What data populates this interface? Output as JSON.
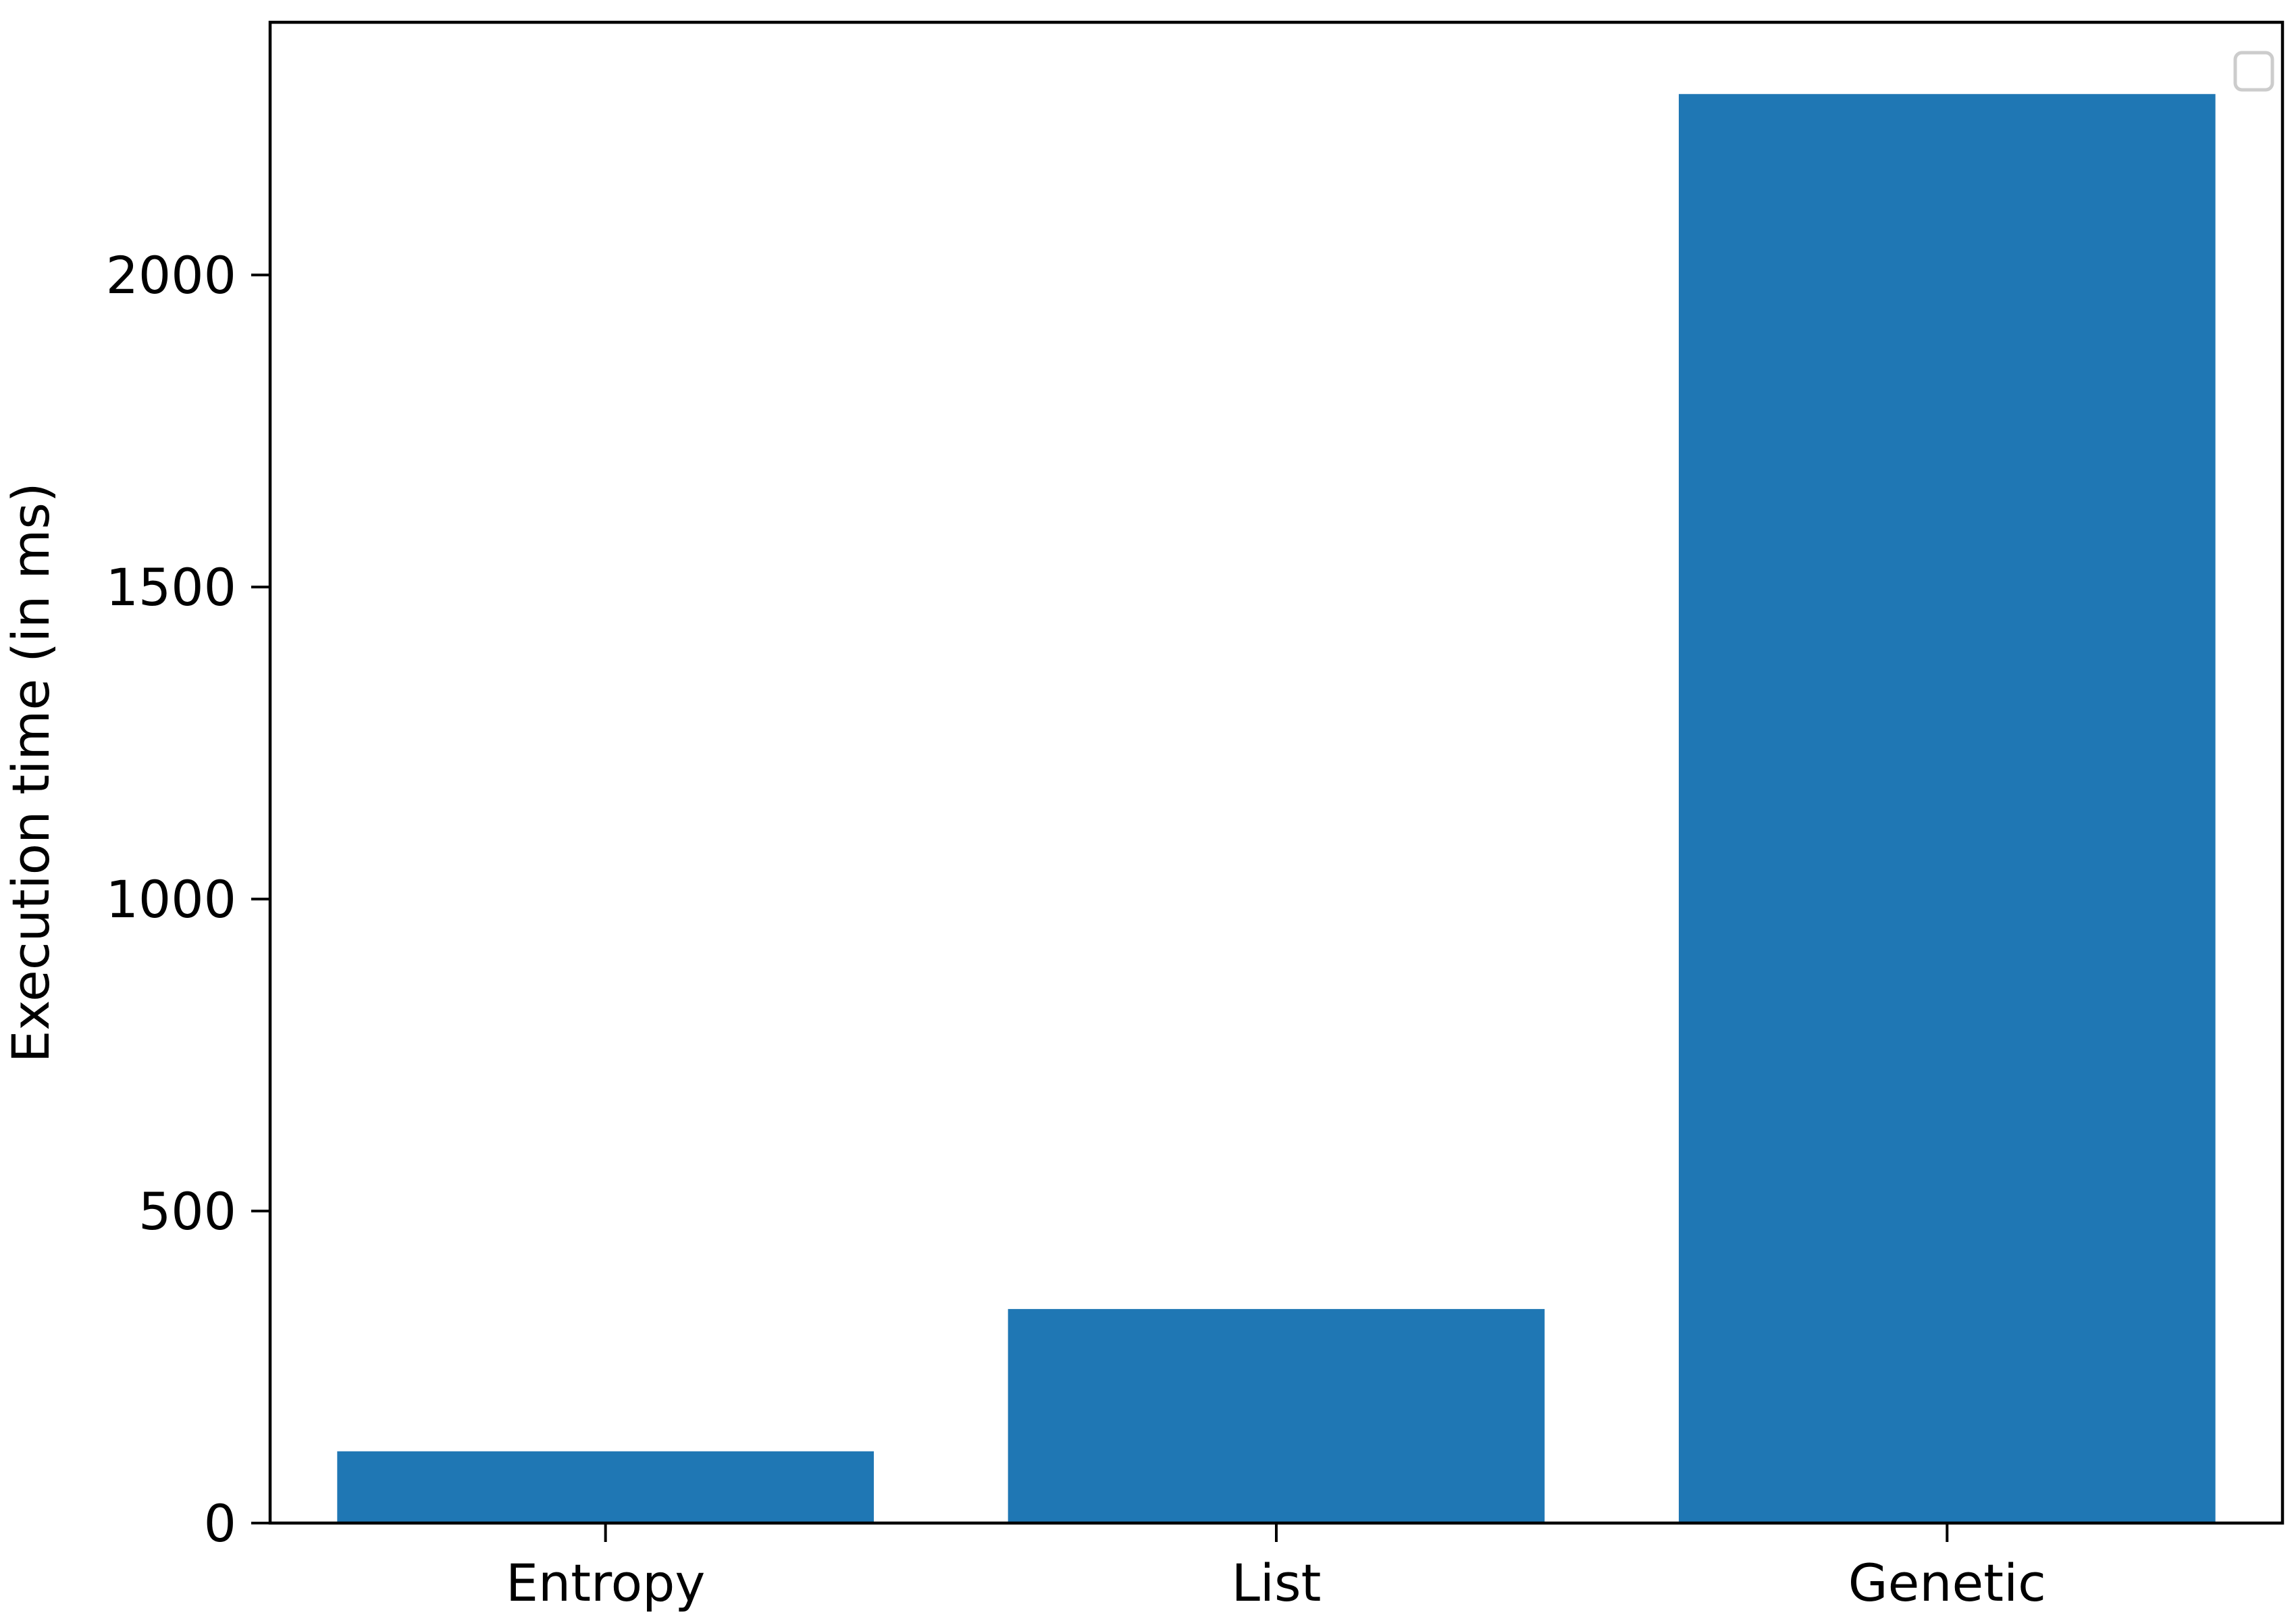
{
  "chart_data": {
    "type": "bar",
    "categories": [
      "Entropy",
      "List",
      "Genetic"
    ],
    "values": [
      115,
      343,
      2290
    ],
    "title": "",
    "xlabel": "",
    "ylabel": "Execution time (in ms)",
    "ylim": [
      0,
      2405
    ],
    "yticks": [
      0,
      500,
      1000,
      1500,
      2000
    ],
    "ytick_labels": [
      "0",
      "500",
      "1000",
      "1500",
      "2000"
    ],
    "grid": false,
    "legend": "top-right",
    "legend_entries": [],
    "colors": {
      "bar": "#1f77b4",
      "axis": "#000000",
      "legend_border": "#cccccc",
      "background": "#ffffff"
    }
  }
}
